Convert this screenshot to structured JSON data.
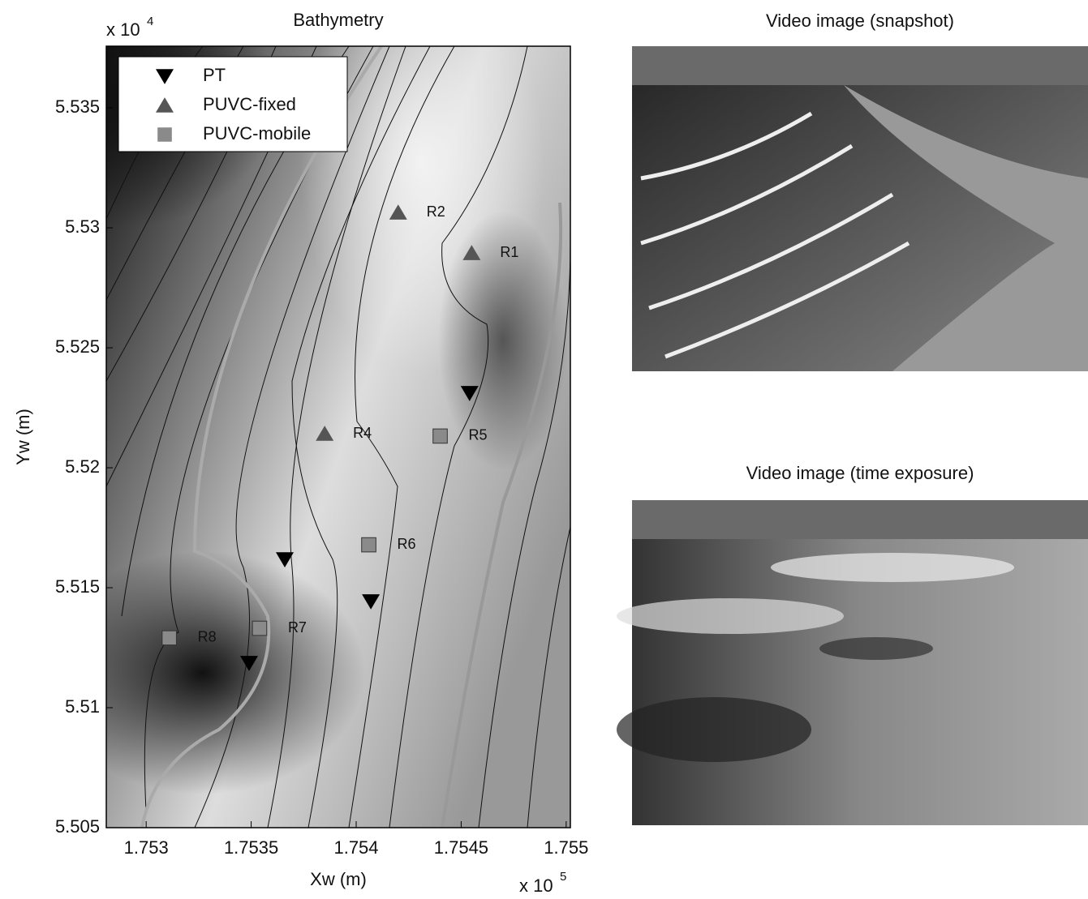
{
  "chart_data": {
    "type": "scatter",
    "title": "Bathymetry",
    "xlabel": "Xw (m)",
    "ylabel": "Yw (m)",
    "x_offset_label": "x 10",
    "x_offset_exponent": "5",
    "y_offset_label": "x 10",
    "y_offset_exponent": "4",
    "xlim": [
      1.75281,
      1.75502
    ],
    "ylim": [
      5.505,
      5.53757
    ],
    "xticks": [
      1.753,
      1.7535,
      1.754,
      1.7545,
      1.755
    ],
    "yticks": [
      5.505,
      5.51,
      5.515,
      5.52,
      5.525,
      5.53,
      5.535
    ],
    "legend": "upper left",
    "series": [
      {
        "name": "PT",
        "marker": "down-triangle",
        "color": "#000000",
        "x": [
          1.75454,
          1.75366,
          1.75407,
          1.75349
        ],
        "y": [
          5.52311,
          5.51618,
          5.51443,
          5.51186
        ]
      },
      {
        "name": "PUVC-fixed",
        "marker": "up-triangle",
        "color": "#555555",
        "x": [
          1.7542,
          1.75455,
          1.75385
        ],
        "y": [
          5.53064,
          5.52895,
          5.52142
        ],
        "labels": [
          "R2",
          "R1",
          "R4"
        ]
      },
      {
        "name": "PUVC-mobile",
        "marker": "square",
        "color": "#8a8a8a",
        "x": [
          1.7544,
          1.75406,
          1.75354,
          1.75311
        ],
        "y": [
          5.52132,
          5.51679,
          5.51331,
          5.51291
        ],
        "labels": [
          "R5",
          "R6",
          "R7",
          "R8"
        ]
      }
    ]
  },
  "images": [
    {
      "title": "Video image (snapshot)"
    },
    {
      "title": "Video image (time exposure)"
    }
  ]
}
